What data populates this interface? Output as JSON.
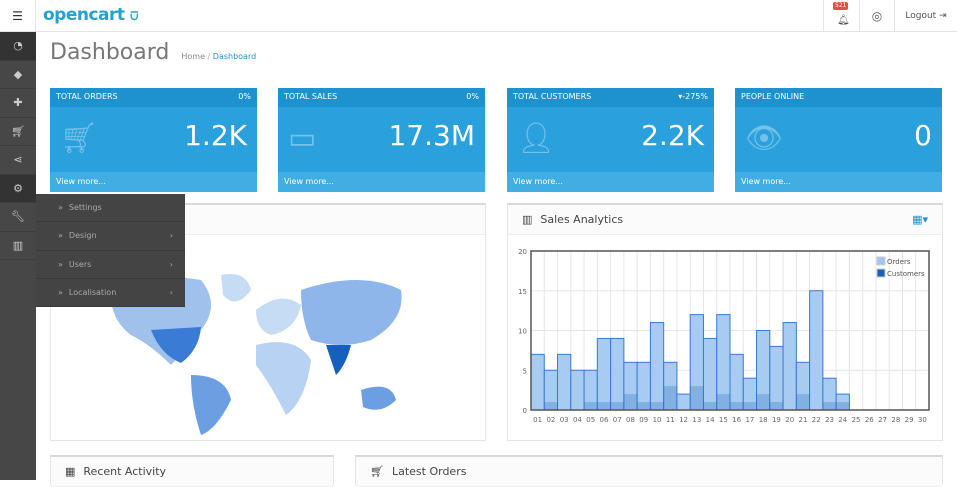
{
  "header": {
    "logo": "opencart",
    "notification_count": "521",
    "logout_label": "Logout"
  },
  "sidebar": {
    "icons": [
      "dashboard-icon",
      "tag-icon",
      "puzzle-icon",
      "cart-icon",
      "share-icon",
      "gear-icon",
      "wrench-icon",
      "bar-chart-icon"
    ]
  },
  "page": {
    "title": "Dashboard",
    "breadcrumb": [
      {
        "label": "Home"
      },
      {
        "label": "Dashboard"
      }
    ]
  },
  "cards": [
    {
      "title": "TOTAL ORDERS",
      "change": "0%",
      "value": "1.2K",
      "icon": "cart-icon",
      "footer": "View more..."
    },
    {
      "title": "TOTAL SALES",
      "change": "0%",
      "value": "17.3M",
      "icon": "credit-card-icon",
      "footer": "View more..."
    },
    {
      "title": "TOTAL CUSTOMERS",
      "change": "-275%",
      "change_direction": "down",
      "value": "2.2K",
      "icon": "user-icon",
      "footer": "View more..."
    },
    {
      "title": "PEOPLE ONLINE",
      "change": "",
      "value": "0",
      "icon": "eye-icon",
      "footer": "View more..."
    }
  ],
  "system_menu": {
    "items": [
      {
        "label": "Settings",
        "has_submenu": false
      },
      {
        "label": "Design",
        "has_submenu": true
      },
      {
        "label": "Users",
        "has_submenu": true
      },
      {
        "label": "Localisation",
        "has_submenu": true
      }
    ]
  },
  "analytics": {
    "title": "Sales Analytics"
  },
  "bottom": {
    "recent_activity": "Recent Activity",
    "latest_orders": "Latest Orders"
  },
  "colors": {
    "brand": "#23a1d1",
    "card": "#2aa0dd",
    "orders": "#9fc5f0",
    "customers": "#1560bd",
    "sidebar": "#474747"
  },
  "chart_data": {
    "type": "bar",
    "categories": [
      "01",
      "02",
      "03",
      "04",
      "05",
      "06",
      "07",
      "08",
      "09",
      "10",
      "11",
      "12",
      "13",
      "14",
      "15",
      "16",
      "17",
      "18",
      "19",
      "20",
      "21",
      "22",
      "23",
      "24",
      "25",
      "26",
      "27",
      "28",
      "29",
      "30"
    ],
    "series": [
      {
        "name": "Orders",
        "values": [
          7,
          5,
          7,
          5,
          5,
          9,
          9,
          6,
          6,
          11,
          6,
          2,
          12,
          9,
          12,
          7,
          4,
          10,
          8,
          11,
          6,
          15,
          4,
          2,
          0,
          0,
          0,
          0,
          0,
          0
        ]
      },
      {
        "name": "Customers",
        "values": [
          0,
          1,
          0,
          0,
          1,
          1,
          1,
          2,
          1,
          1,
          3,
          0,
          3,
          1,
          2,
          1,
          1,
          2,
          1,
          0,
          2,
          0,
          1,
          1,
          0,
          0,
          0,
          0,
          0,
          0
        ]
      }
    ],
    "ylim": [
      0,
      20
    ],
    "yticks": [
      0,
      5,
      10,
      15,
      20
    ],
    "grid": true,
    "legend": "top-right"
  }
}
